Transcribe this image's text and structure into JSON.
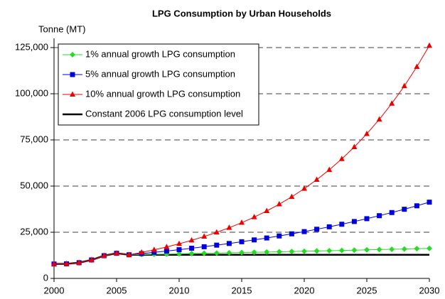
{
  "chart_data": {
    "type": "line",
    "title": "LPG Consumption by Urban Households",
    "y_label": "Tonne (MT)",
    "x": [
      2000,
      2001,
      2002,
      2003,
      2004,
      2005,
      2006,
      2007,
      2008,
      2009,
      2010,
      2011,
      2012,
      2013,
      2014,
      2015,
      2016,
      2017,
      2018,
      2019,
      2020,
      2021,
      2022,
      2023,
      2024,
      2025,
      2026,
      2027,
      2028,
      2029,
      2030
    ],
    "xlim": [
      2000,
      2030
    ],
    "xticks": [
      2000,
      2005,
      2010,
      2015,
      2020,
      2025,
      2030
    ],
    "ylim": [
      0,
      130000
    ],
    "yticks": [
      0,
      {
        "value": 25000,
        "label": "25,000"
      },
      {
        "value": 50000,
        "label": "50,000"
      },
      {
        "value": 75000,
        "label": "75,000"
      },
      {
        "value": 100000,
        "label": "100,000"
      },
      {
        "value": 125000,
        "label": "125,000"
      }
    ],
    "grid": true,
    "legend": "upper left",
    "series": [
      {
        "name": "1% annual growth LPG consumption",
        "color": "#22dd22",
        "marker": "diamond",
        "values": [
          7800,
          7900,
          8500,
          10000,
          12300,
          13600,
          12800,
          12928,
          13057,
          13188,
          13320,
          13453,
          13588,
          13724,
          13861,
          14000,
          14140,
          14281,
          14424,
          14568,
          14714,
          14861,
          15010,
          15160,
          15311,
          15464,
          15619,
          15775,
          15933,
          16092,
          16253
        ]
      },
      {
        "name": "5% annual growth LPG consumption",
        "color": "#0000dd",
        "marker": "square",
        "values": [
          7800,
          7900,
          8500,
          10000,
          12300,
          13600,
          12800,
          13440,
          14112,
          14818,
          15558,
          16336,
          17153,
          18011,
          18912,
          19857,
          20850,
          21893,
          22987,
          24137,
          25343,
          26611,
          27941,
          29338,
          30805,
          32346,
          33963,
          35661,
          37444,
          39316,
          41282
        ]
      },
      {
        "name": "10% annual growth LPG consumption",
        "color": "#ee0000",
        "marker": "triangle",
        "values": [
          7800,
          7900,
          8500,
          10000,
          12300,
          13600,
          12800,
          14080,
          15488,
          17037,
          18740,
          20615,
          22676,
          24944,
          27438,
          30182,
          33200,
          36520,
          40172,
          44189,
          48608,
          53469,
          58816,
          64698,
          71167,
          78284,
          86112,
          94724,
          104196,
          114615,
          126077
        ]
      },
      {
        "name": "Constant 2006 LPG consumption level",
        "color": "#000000",
        "marker": "none",
        "values": [
          7800,
          7900,
          8500,
          10000,
          12300,
          13600,
          12800,
          12800,
          12800,
          12800,
          12800,
          12800,
          12800,
          12800,
          12800,
          12800,
          12800,
          12800,
          12800,
          12800,
          12800,
          12800,
          12800,
          12800,
          12800,
          12800,
          12800,
          12800,
          12800,
          12800,
          12800
        ]
      }
    ]
  }
}
